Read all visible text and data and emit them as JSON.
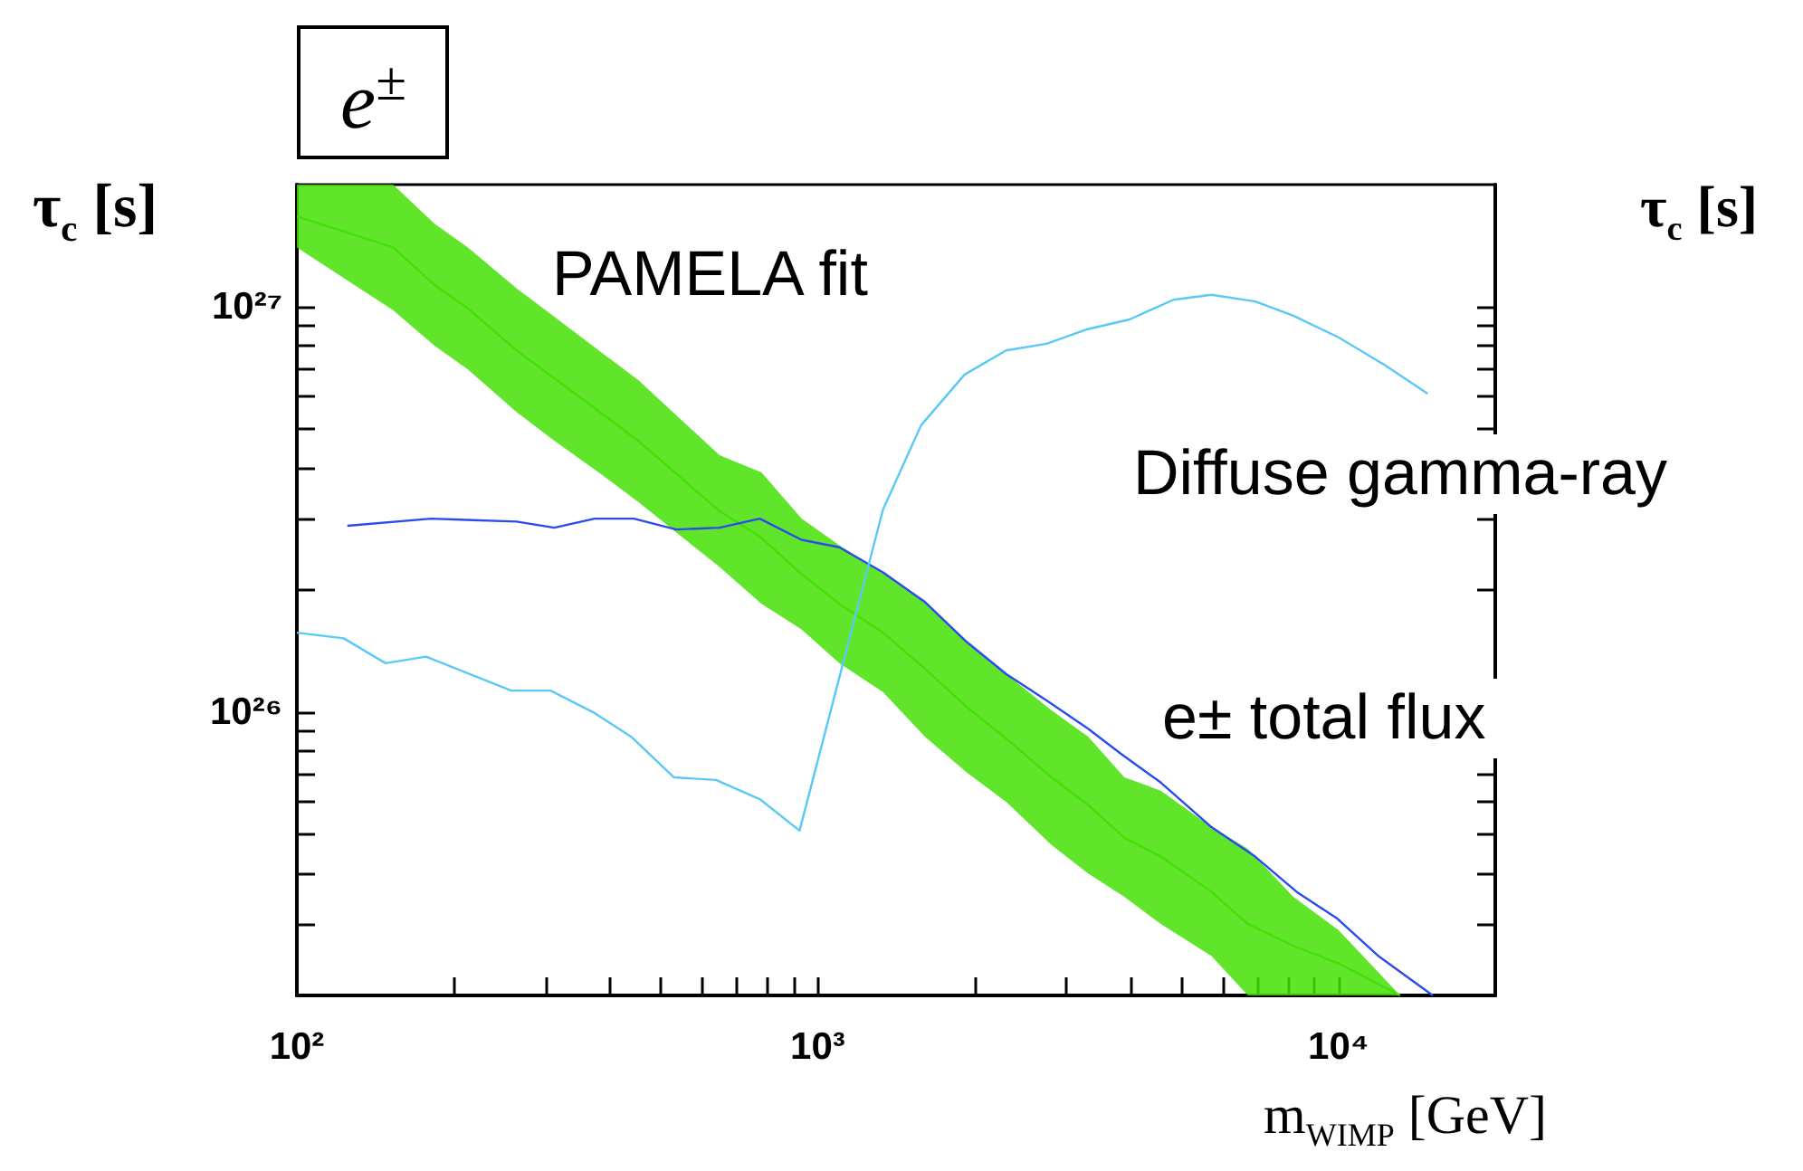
{
  "chart_data": {
    "type": "line",
    "title": "e$^{±}$",
    "ylabel": "τ$_{c}$ [s]",
    "xlabel": "m$_{WIMP}$ [GeV]",
    "annotations": [
      "τ$_{c}$ [s]"
    ],
    "log": "xy",
    "grid": false,
    "xlim": [
      100,
      20000
    ],
    "ylim": [
      2e+25,
      2e+27
    ],
    "xticks": [
      {
        "value": 100,
        "label": "10²"
      },
      {
        "value": 200,
        "label": null
      },
      {
        "value": 300,
        "label": null
      },
      {
        "value": 400,
        "label": null
      },
      {
        "value": 500,
        "label": null
      },
      {
        "value": 600,
        "label": null
      },
      {
        "value": 700,
        "label": null
      },
      {
        "value": 800,
        "label": null
      },
      {
        "value": 900,
        "label": null
      },
      {
        "value": 1000,
        "label": "10³"
      },
      {
        "value": 2000,
        "label": null
      },
      {
        "value": 3000,
        "label": null
      },
      {
        "value": 4000,
        "label": null
      },
      {
        "value": 5000,
        "label": null
      },
      {
        "value": 6000,
        "label": null
      },
      {
        "value": 7000,
        "label": null
      },
      {
        "value": 8000,
        "label": null
      },
      {
        "value": 9000,
        "label": null
      },
      {
        "value": 10000,
        "label": "10⁴"
      },
      {
        "value": 20000,
        "label": null
      }
    ],
    "yticks": [
      {
        "value": 2e+25,
        "label": null
      },
      {
        "value": 3e+25,
        "label": null
      },
      {
        "value": 4e+25,
        "label": null
      },
      {
        "value": 5e+25,
        "label": null
      },
      {
        "value": 6e+25,
        "label": null
      },
      {
        "value": 7e+25,
        "label": null
      },
      {
        "value": 8e+25,
        "label": null
      },
      {
        "value": 9e+25,
        "label": null
      },
      {
        "value": 1e+26,
        "label": "10²⁶"
      },
      {
        "value": 2e+26,
        "label": null
      },
      {
        "value": 3e+26,
        "label": null
      },
      {
        "value": 4e+26,
        "label": null
      },
      {
        "value": 5e+26,
        "label": null
      },
      {
        "value": 6e+26,
        "label": null
      },
      {
        "value": 7e+26,
        "label": null
      },
      {
        "value": 8e+26,
        "label": null
      },
      {
        "value": 9e+26,
        "label": null
      },
      {
        "value": 1e+27,
        "label": "10²⁷"
      },
      {
        "value": 2e+27,
        "label": null
      }
    ],
    "series": [
      {
        "name": "PAMELA fit",
        "color": "#44e005",
        "x": [
          100,
          153,
          184,
          213,
          264,
          310,
          385,
          452,
          648,
          780,
          931,
          1100,
          1335,
          1606,
          1932,
          2303,
          2812,
          3306,
          3880,
          4560,
          5705,
          6700,
          8190,
          10000,
          13130
        ],
        "values": [
          1.67e+27,
          1.4e+27,
          1.13e+27,
          9.9e+26,
          7.8e+26,
          6.7e+26,
          5.45e+26,
          4.67e+26,
          3.13e+26,
          2.69e+26,
          2.19e+26,
          1.85e+26,
          1.57e+26,
          1.28e+26,
          1.03e+26,
          8.6e+25,
          6.9e+25,
          5.9e+25,
          4.9e+25,
          4.4e+25,
          3.6e+25,
          3e+25,
          2.65e+25,
          2.4e+25,
          2e+25
        ],
        "upper": [
          2e+27,
          2e+27,
          1.6e+27,
          1.4e+27,
          1.11e+27,
          9.5e+26,
          7.7e+26,
          6.6e+26,
          4.3e+26,
          3.9e+26,
          3e+26,
          2.58e+26,
          2.21e+26,
          1.87e+26,
          1.49e+26,
          1.24e+26,
          1.01e+26,
          8.7e+25,
          6.9e+25,
          6.4e+25,
          5.2e+25,
          4.6e+25,
          3.5e+25,
          2.9e+25,
          2e+25
        ],
        "lower": [
          1.4e+27,
          9.8e+26,
          8e+26,
          7e+26,
          5.5e+26,
          4.7e+26,
          3.85e+26,
          3.3e+26,
          2.28e+26,
          1.85e+26,
          1.6e+26,
          1.32e+26,
          1.12e+26,
          8.7e+25,
          7.1e+25,
          6e+25,
          4.7e+25,
          4e+25,
          3.5e+25,
          3e+25,
          2.5e+25,
          2e+25,
          2e+25,
          2e+25,
          2e+25
        ]
      },
      {
        "name": "e± total flux",
        "color": "#2a4bef",
        "x": [
          125,
          181,
          264,
          312,
          373,
          444,
          535,
          648,
          774,
          931,
          1100,
          1335,
          1606,
          1932,
          2303,
          2747,
          3306,
          3818,
          4560,
          5705,
          6918,
          8318,
          9930,
          11940,
          15170
        ],
        "values": [
          2.88e+26,
          3e+26,
          2.95e+26,
          2.85e+26,
          3e+26,
          3e+26,
          2.82e+26,
          2.85e+26,
          3e+26,
          2.66e+26,
          2.55e+26,
          2.21e+26,
          1.87e+26,
          1.49e+26,
          1.24e+26,
          1.07e+26,
          9.1e+25,
          7.9e+25,
          6.7e+25,
          5.2e+25,
          4.4e+25,
          3.6e+25,
          3.1e+25,
          2.5e+25,
          2e+25
        ]
      },
      {
        "name": "Diffuse gamma-ray",
        "color": "#5bc8f5",
        "x": [
          100,
          123,
          148,
          177,
          258,
          307,
          370,
          438,
          530,
          638,
          774,
          923,
          1335,
          1580,
          1915,
          2300,
          2750,
          3300,
          3970,
          4820,
          5700,
          6920,
          8190,
          10000,
          12220,
          14830
        ],
        "values": [
          1.57e+26,
          1.52e+26,
          1.32e+26,
          1.37e+26,
          1.13e+26,
          1.13e+26,
          1e+26,
          8.7e+25,
          6.9e+25,
          6.8e+25,
          6.1e+25,
          5.1e+25,
          3.16e+26,
          5.1e+26,
          6.8e+26,
          7.8e+26,
          8.1e+26,
          8.8e+26,
          9.3e+26,
          1.04e+27,
          1.07e+27,
          1.03e+27,
          9.5e+26,
          8.4e+26,
          7.2e+26,
          6.1e+26
        ]
      }
    ]
  }
}
